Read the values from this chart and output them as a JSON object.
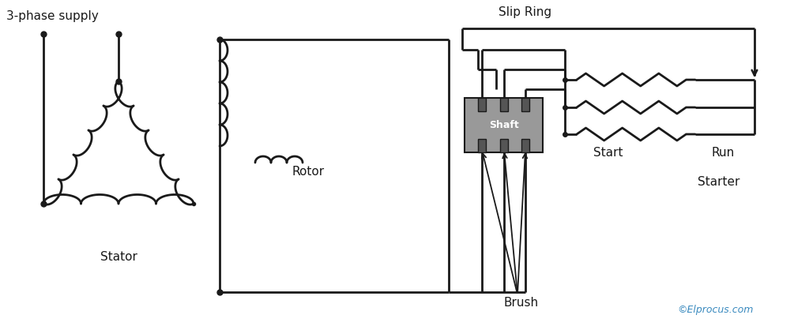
{
  "bg_color": "#ffffff",
  "line_color": "#1a1a1a",
  "lw": 2.0,
  "text_3phase": "3-phase supply",
  "text_stator": "Stator",
  "text_rotor": "Rotor",
  "text_slip_ring": "Slip Ring",
  "text_shaft": "Shaft",
  "text_brush": "Brush",
  "text_start": "Start",
  "text_run": "Run",
  "text_starter": "Starter",
  "text_copyright": "©Elprocus.com",
  "shaft_color": "#999999",
  "brush_color": "#555555"
}
